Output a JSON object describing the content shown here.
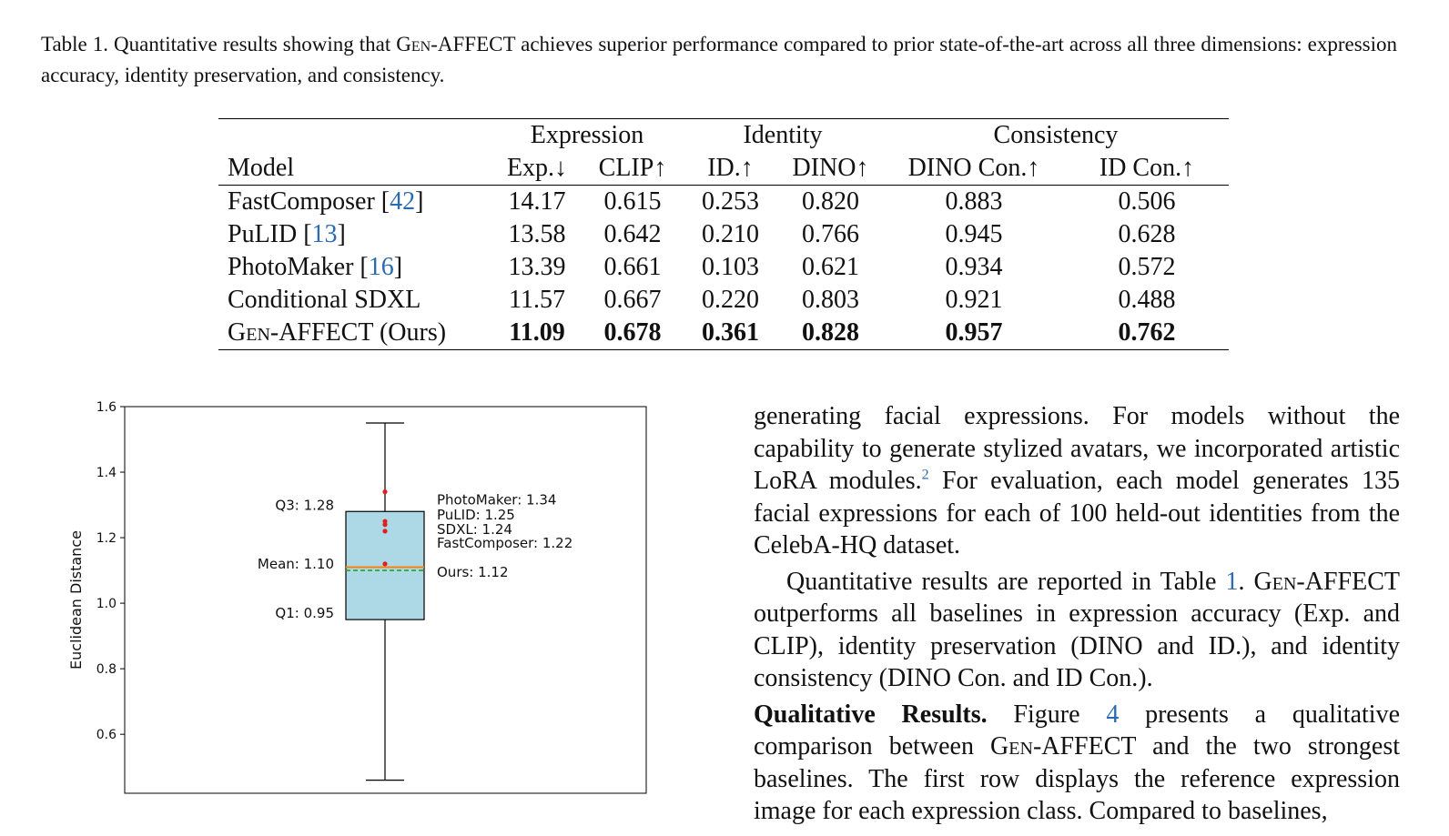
{
  "caption": {
    "prefix": "Table 1. Quantitative results showing that ",
    "gen": "Gen",
    "rest": "-AFFECT achieves superior performance compared to prior state-of-the-art across all three dimensions: expression accuracy, identity preservation, and consistency."
  },
  "table": {
    "group_headers": [
      "Expression",
      "Identity",
      "Consistency"
    ],
    "model_header": "Model",
    "col_headers": [
      "Exp.↓",
      "CLIP↑",
      "ID.↑",
      "DINO↑",
      "DINO Con.↑",
      "ID Con.↑"
    ],
    "rows": [
      {
        "model": "FastComposer [",
        "ref": "42",
        "close": "]",
        "values": [
          "14.17",
          "0.615",
          "0.253",
          "0.820",
          "0.883",
          "0.506"
        ]
      },
      {
        "model": "PuLID [",
        "ref": "13",
        "close": "]",
        "values": [
          "13.58",
          "0.642",
          "0.210",
          "0.766",
          "0.945",
          "0.628"
        ]
      },
      {
        "model": "PhotoMaker [",
        "ref": "16",
        "close": "]",
        "values": [
          "13.39",
          "0.661",
          "0.103",
          "0.621",
          "0.934",
          "0.572"
        ]
      },
      {
        "model": "Conditional SDXL",
        "ref": "",
        "close": "",
        "values": [
          "11.57",
          "0.667",
          "0.220",
          "0.803",
          "0.921",
          "0.488"
        ]
      }
    ],
    "ours": {
      "gen": "Gen",
      "model": "-AFFECT (Ours)",
      "values": [
        "11.09",
        "0.678",
        "0.361",
        "0.828",
        "0.957",
        "0.762"
      ]
    }
  },
  "chart_data": {
    "type": "box",
    "ylabel": "Euclidean Distance",
    "ylim": [
      0.42,
      1.6
    ],
    "yticks": [
      "0.6",
      "0.8",
      "1.0",
      "1.2",
      "1.4",
      "1.6"
    ],
    "box": {
      "q1": 0.95,
      "q3": 1.28,
      "mean": 1.1,
      "median": 1.11,
      "whisker_low": 0.46,
      "whisker_high": 1.55
    },
    "box_labels": [
      "Q3: 1.28",
      "Mean: 1.10",
      "Q1: 0.95"
    ],
    "points": [
      {
        "label": "PhotoMaker: 1.34",
        "value": 1.34
      },
      {
        "label": "PuLID: 1.25",
        "value": 1.25
      },
      {
        "label": "SDXL: 1.24",
        "value": 1.24
      },
      {
        "label": "FastComposer: 1.22",
        "value": 1.22
      },
      {
        "label": "Ours: 1.12",
        "value": 1.12
      }
    ],
    "colors": {
      "box": "#add8e6",
      "point": "#e02020",
      "mean": "#2ca02c",
      "median": "#ff7f0e"
    }
  },
  "body": {
    "p1": "generating facial expressions. For models without the capability to generate stylized avatars, we incorporated artistic LoRA modules.",
    "p1_sup": "2",
    "p1_rest": " For evaluation, each model generates 135 facial expressions for each of 100 held-out identities from the CelebA-HQ dataset.",
    "p2_a": "Quantitative results are reported in Table ",
    "p2_ref": "1",
    "p2_b": ".  ",
    "p2_gen": "Gen",
    "p2_c": "-AFFECT outperforms all baselines in expression accuracy (Exp. and CLIP), identity preservation (DINO and ID.), and identity consistency (DINO Con. and ID Con.).",
    "p3_head": "Qualitative Results.",
    "p3_a": " Figure ",
    "p3_ref": "4",
    "p3_b": " presents a qualitative comparison between ",
    "p3_gen": "Gen",
    "p3_c": "-AFFECT and the two strongest baselines.  The first row displays the reference expression image for each expression class.  Compared to baselines,"
  }
}
